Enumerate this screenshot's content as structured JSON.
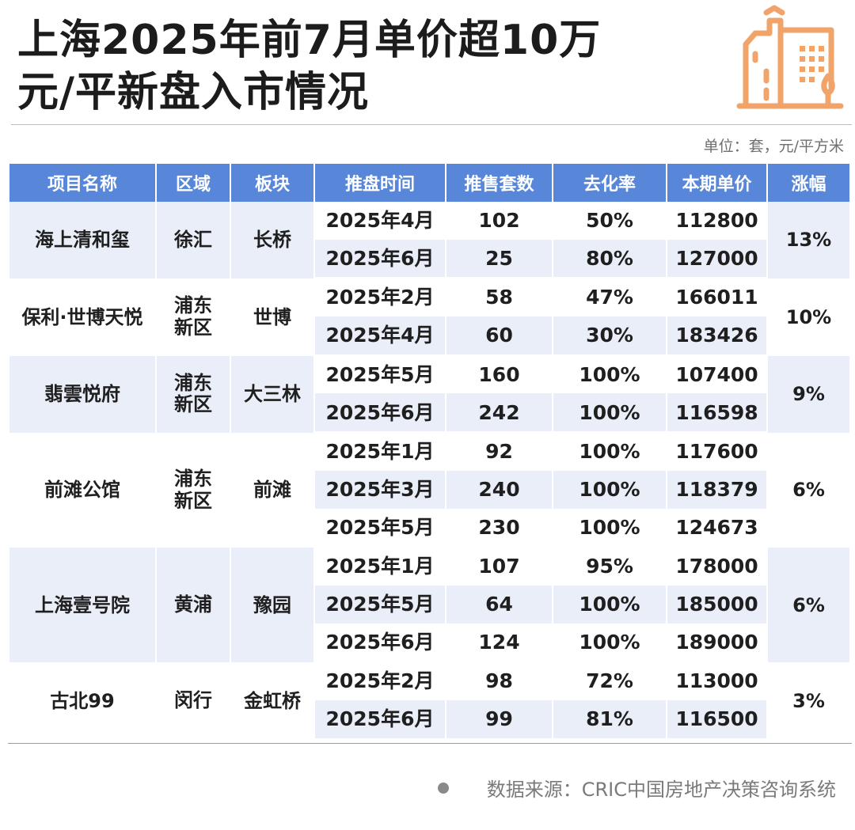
{
  "title": {
    "line1": "上海2025年前7月单价超10万",
    "line2": "元/平新盘入市情况"
  },
  "unit_note": "单位：套，元/平方米",
  "table": {
    "headers": [
      "项目名称",
      "区域",
      "板块",
      "推盘时间",
      "推售套数",
      "去化率",
      "本期单价",
      "涨幅"
    ],
    "projects": [
      {
        "name": "海上清和玺",
        "district": "徐汇",
        "area": "长桥",
        "growth": "13%",
        "rows": [
          {
            "time": "2025年4月",
            "units": "102",
            "rate": "50%",
            "price": "112800"
          },
          {
            "time": "2025年6月",
            "units": "25",
            "rate": "80%",
            "price": "127000"
          }
        ]
      },
      {
        "name": "保利·世博天悦",
        "district": "浦东新区",
        "area": "世博",
        "growth": "10%",
        "rows": [
          {
            "time": "2025年2月",
            "units": "58",
            "rate": "47%",
            "price": "166011"
          },
          {
            "time": "2025年4月",
            "units": "60",
            "rate": "30%",
            "price": "183426"
          }
        ]
      },
      {
        "name": "翡雲悦府",
        "district": "浦东新区",
        "area": "大三林",
        "growth": "9%",
        "rows": [
          {
            "time": "2025年5月",
            "units": "160",
            "rate": "100%",
            "price": "107400"
          },
          {
            "time": "2025年6月",
            "units": "242",
            "rate": "100%",
            "price": "116598"
          }
        ]
      },
      {
        "name": "前滩公馆",
        "district": "浦东新区",
        "area": "前滩",
        "growth": "6%",
        "rows": [
          {
            "time": "2025年1月",
            "units": "92",
            "rate": "100%",
            "price": "117600"
          },
          {
            "time": "2025年3月",
            "units": "240",
            "rate": "100%",
            "price": "118379"
          },
          {
            "time": "2025年5月",
            "units": "230",
            "rate": "100%",
            "price": "124673"
          }
        ]
      },
      {
        "name": "上海壹号院",
        "district": "黄浦",
        "area": "豫园",
        "growth": "6%",
        "rows": [
          {
            "time": "2025年1月",
            "units": "107",
            "rate": "95%",
            "price": "178000"
          },
          {
            "time": "2025年5月",
            "units": "64",
            "rate": "100%",
            "price": "185000"
          },
          {
            "time": "2025年6月",
            "units": "124",
            "rate": "100%",
            "price": "189000"
          }
        ]
      },
      {
        "name": "古北99",
        "district": "闵行",
        "area": "金虹桥",
        "growth": "3%",
        "rows": [
          {
            "time": "2025年2月",
            "units": "98",
            "rate": "72%",
            "price": "113000"
          },
          {
            "time": "2025年6月",
            "units": "99",
            "rate": "81%",
            "price": "116500"
          }
        ]
      }
    ]
  },
  "source": "数据来源：CRIC中国房地产决策咨询系统",
  "logo_icon": "buildings-icon",
  "colors": {
    "header_bg": "#5887d9",
    "row_alt_bg": "#e9eef8",
    "logo_orange": "#f0a46a"
  }
}
